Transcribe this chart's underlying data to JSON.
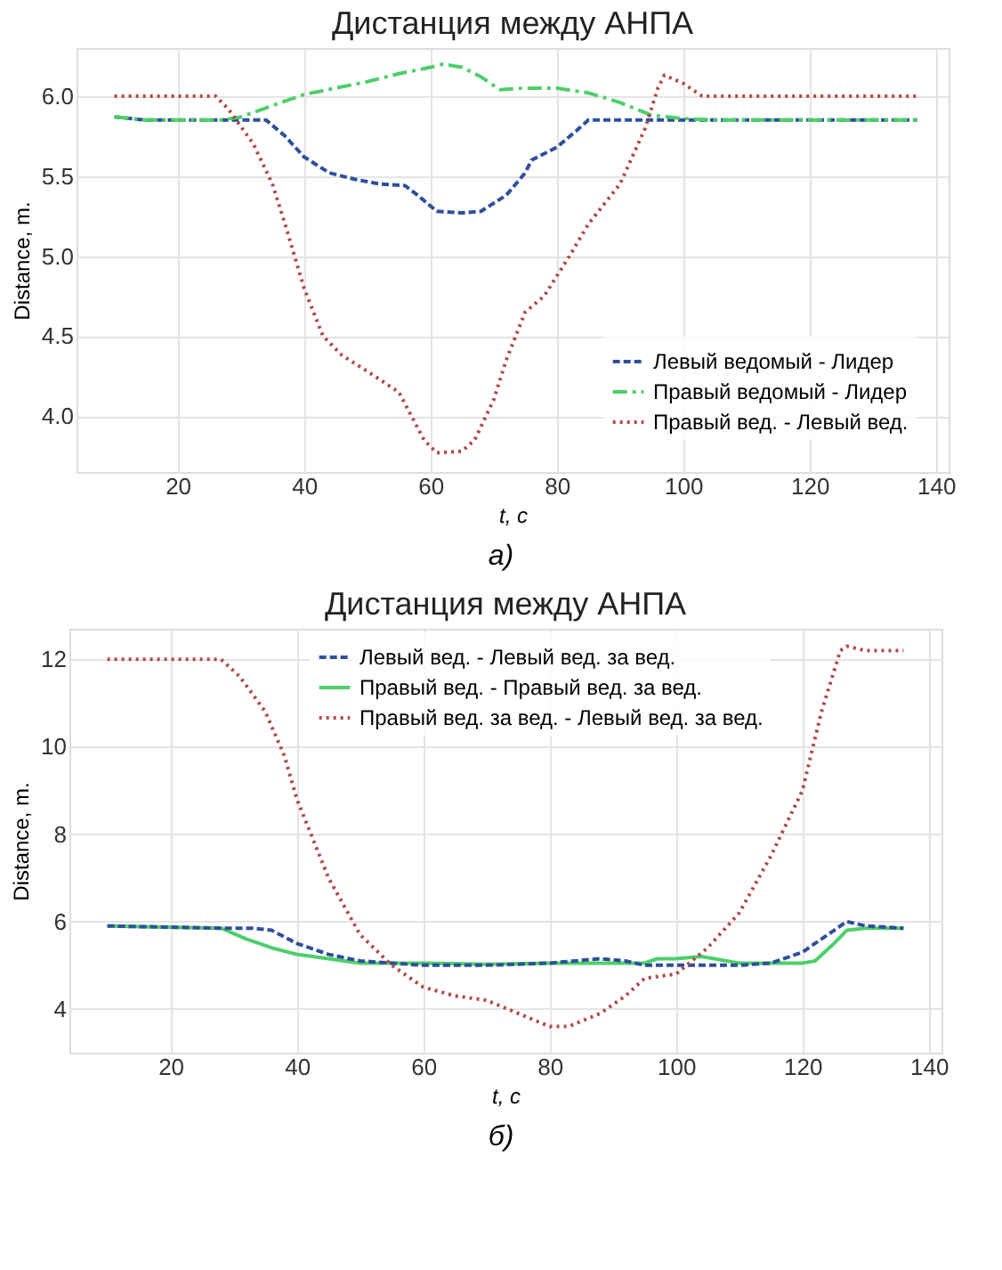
{
  "chart_data": [
    {
      "type": "line",
      "title": "Дистанция между АНПА",
      "xlabel": "t, с",
      "ylabel": "Distance, m.",
      "annotations": [
        "а)"
      ],
      "xlim": [
        4,
        142
      ],
      "ylim": [
        3.65,
        6.3
      ],
      "xticks": [
        20,
        40,
        60,
        80,
        100,
        120,
        140
      ],
      "yticks": [
        {
          "value": 4,
          "label": "4.0"
        },
        4.5,
        {
          "value": 5,
          "label": "5.0"
        },
        5.5,
        {
          "value": 6,
          "label": "6.0"
        }
      ],
      "grid": true,
      "legend": "bottom right",
      "series": [
        {
          "name": "Левый ведомый - Лидер",
          "color": "#2f4f9a",
          "line_style": "dashed",
          "x": [
            10,
            15,
            27,
            34,
            37,
            40,
            44,
            48,
            52,
            56,
            58,
            61,
            65,
            68,
            72,
            75,
            76,
            80,
            83,
            85,
            90,
            100,
            137
          ],
          "values": [
            5.87,
            5.85,
            5.85,
            5.85,
            5.75,
            5.62,
            5.52,
            5.48,
            5.45,
            5.44,
            5.38,
            5.28,
            5.27,
            5.28,
            5.38,
            5.52,
            5.6,
            5.68,
            5.78,
            5.85,
            5.85,
            5.85,
            5.85
          ]
        },
        {
          "name": "Правый ведомый - Лидер",
          "color": "#4dcf6a",
          "line_style": "dashdot",
          "x": [
            10,
            15,
            27,
            30,
            35,
            40,
            45,
            50,
            55,
            60,
            62,
            65,
            68,
            71,
            75,
            80,
            85,
            90,
            95,
            100,
            105,
            137
          ],
          "values": [
            5.87,
            5.85,
            5.85,
            5.87,
            5.94,
            6.01,
            6.05,
            6.09,
            6.14,
            6.18,
            6.2,
            6.18,
            6.12,
            6.04,
            6.05,
            6.05,
            6.02,
            5.96,
            5.88,
            5.86,
            5.85,
            5.85
          ]
        },
        {
          "name": "Правый вед. - Левый вед.",
          "color": "#b04a4a",
          "line_style": "dotted",
          "x": [
            10,
            26,
            28,
            32,
            35,
            37,
            40,
            43,
            46,
            50,
            55,
            57,
            59,
            61,
            65,
            67,
            70,
            72,
            75,
            78,
            82,
            85,
            90,
            94,
            96,
            97,
            100,
            103,
            137
          ],
          "values": [
            6.0,
            6.0,
            5.92,
            5.7,
            5.45,
            5.2,
            4.8,
            4.5,
            4.38,
            4.28,
            4.15,
            4.0,
            3.85,
            3.77,
            3.78,
            3.85,
            4.1,
            4.35,
            4.65,
            4.75,
            5.0,
            5.2,
            5.45,
            5.8,
            6.05,
            6.13,
            6.08,
            6.0,
            6.0
          ]
        }
      ]
    },
    {
      "type": "line",
      "title": "Дистанция между АНПА",
      "xlabel": "t, с",
      "ylabel": "Distance, m.",
      "annotations": [
        "б)"
      ],
      "xlim": [
        4,
        142
      ],
      "ylim": [
        3.0,
        12.7
      ],
      "xticks": [
        20,
        40,
        60,
        80,
        100,
        120,
        140
      ],
      "yticks": [
        4,
        6,
        8,
        10,
        12
      ],
      "grid": true,
      "legend": "top",
      "series": [
        {
          "name": "Левый вед. - Левый вед. за вед.",
          "color": "#2f4f9a",
          "line_style": "dashed",
          "x": [
            10,
            28,
            33,
            36,
            40,
            45,
            50,
            55,
            60,
            70,
            80,
            88,
            92,
            95,
            100,
            110,
            115,
            120,
            124,
            127,
            130,
            136
          ],
          "values": [
            5.9,
            5.85,
            5.85,
            5.8,
            5.5,
            5.25,
            5.1,
            5.05,
            5.0,
            5.0,
            5.05,
            5.15,
            5.1,
            5.0,
            5.0,
            5.0,
            5.05,
            5.3,
            5.7,
            6.0,
            5.9,
            5.85
          ]
        },
        {
          "name": "Правый вед. - Правый вед. за вед.",
          "color": "#4dcf6a",
          "line_style": "solid",
          "x": [
            10,
            28,
            32,
            36,
            40,
            45,
            50,
            60,
            70,
            80,
            95,
            97,
            100,
            104,
            110,
            120,
            122,
            125,
            127,
            130,
            136
          ],
          "values": [
            5.9,
            5.85,
            5.6,
            5.4,
            5.25,
            5.15,
            5.05,
            5.05,
            5.02,
            5.05,
            5.05,
            5.15,
            5.15,
            5.2,
            5.05,
            5.05,
            5.1,
            5.5,
            5.8,
            5.85,
            5.85
          ]
        },
        {
          "name": "Правый вед. за вед. - Левый вед. за вед.",
          "color": "#b04a4a",
          "line_style": "dotted",
          "x": [
            10,
            20,
            28,
            31,
            35,
            38,
            40,
            45,
            50,
            55,
            60,
            65,
            70,
            75,
            80,
            83,
            88,
            92,
            95,
            100,
            105,
            110,
            115,
            120,
            123,
            126,
            127,
            130,
            136
          ],
          "values": [
            12.0,
            12.0,
            12.0,
            11.6,
            10.8,
            9.8,
            8.8,
            7.0,
            5.7,
            5.0,
            4.5,
            4.3,
            4.2,
            3.9,
            3.6,
            3.6,
            3.9,
            4.3,
            4.7,
            4.8,
            5.4,
            6.2,
            7.5,
            9.0,
            10.8,
            12.2,
            12.3,
            12.2,
            12.2
          ]
        }
      ]
    }
  ]
}
